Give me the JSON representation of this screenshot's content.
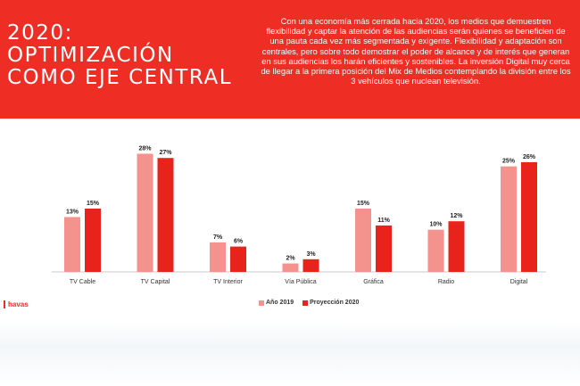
{
  "header": {
    "title_lines": [
      "2020:",
      "Optimización",
      "como eje central"
    ],
    "description": "Con una economía más cerrada hacia 2020, los medios que demuestren flexibilidad y captar la atención de las audiencias serán quienes se beneficien de una pauta cada vez más segmentada y exigente. Flexibilidad y adaptación son centrales, pero sobre todo demostrar el poder de alcance y de interés que generan en sus audiencias los harán eficientes y sostenibles. La inversión Digital muy cerca de llegar a la primera posición del Mix de Medios contemplando la división entre los 3 vehículos que nuclean televisión."
  },
  "footer": {
    "brand": "havas"
  },
  "colors": {
    "banner": "#ee2e24",
    "series_2019": "#f4938d",
    "series_2020": "#e8231c"
  },
  "chart_data": {
    "type": "bar",
    "title": "",
    "xlabel": "",
    "ylabel": "",
    "ylim": [
      0,
      30
    ],
    "grid": false,
    "legend_position": "bottom",
    "categories": [
      "TV Cable",
      "TV Capital",
      "TV Interior",
      "Vía Pública",
      "Gráfica",
      "Radio",
      "Digital"
    ],
    "series": [
      {
        "name": "Año 2019",
        "values": [
          13,
          28,
          7,
          2,
          15,
          10,
          25
        ],
        "labels": [
          "13%",
          "28%",
          "7%",
          "2%",
          "15%",
          "10%",
          "25%"
        ],
        "color": "#f4938d"
      },
      {
        "name": "Proyección 2020",
        "values": [
          15,
          27,
          6,
          3,
          11,
          12,
          26
        ],
        "labels": [
          "15%",
          "27%",
          "6%",
          "3%",
          "11%",
          "12%",
          "26%"
        ],
        "color": "#e8231c"
      }
    ]
  }
}
